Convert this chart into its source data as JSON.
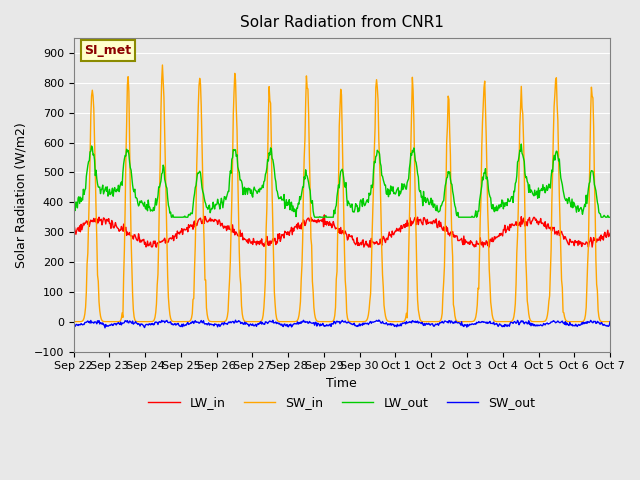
{
  "title": "Solar Radiation from CNR1",
  "xlabel": "Time",
  "ylabel": "Solar Radiation (W/m2)",
  "ylim": [
    -100,
    950
  ],
  "yticks": [
    -100,
    0,
    100,
    200,
    300,
    400,
    500,
    600,
    700,
    800,
    900
  ],
  "annotation_label": "SI_met",
  "annotation_color": "#8B0000",
  "annotation_bg": "#FFFFCC",
  "annotation_border": "#8B8B00",
  "bg_color": "#E8E8E8",
  "line_colors": {
    "LW_in": "#FF0000",
    "SW_in": "#FFA500",
    "LW_out": "#00CC00",
    "SW_out": "#0000FF"
  },
  "line_width": 1.0,
  "xtick_labels": [
    "Sep 22",
    "Sep 23",
    "Sep 24",
    "Sep 25",
    "Sep 26",
    "Sep 27",
    "Sep 28",
    "Sep 29",
    "Sep 30",
    "Oct 1",
    "Oct 2",
    "Oct 3",
    "Oct 4",
    "Oct 5",
    "Oct 6",
    "Oct 7"
  ],
  "seed": 42
}
